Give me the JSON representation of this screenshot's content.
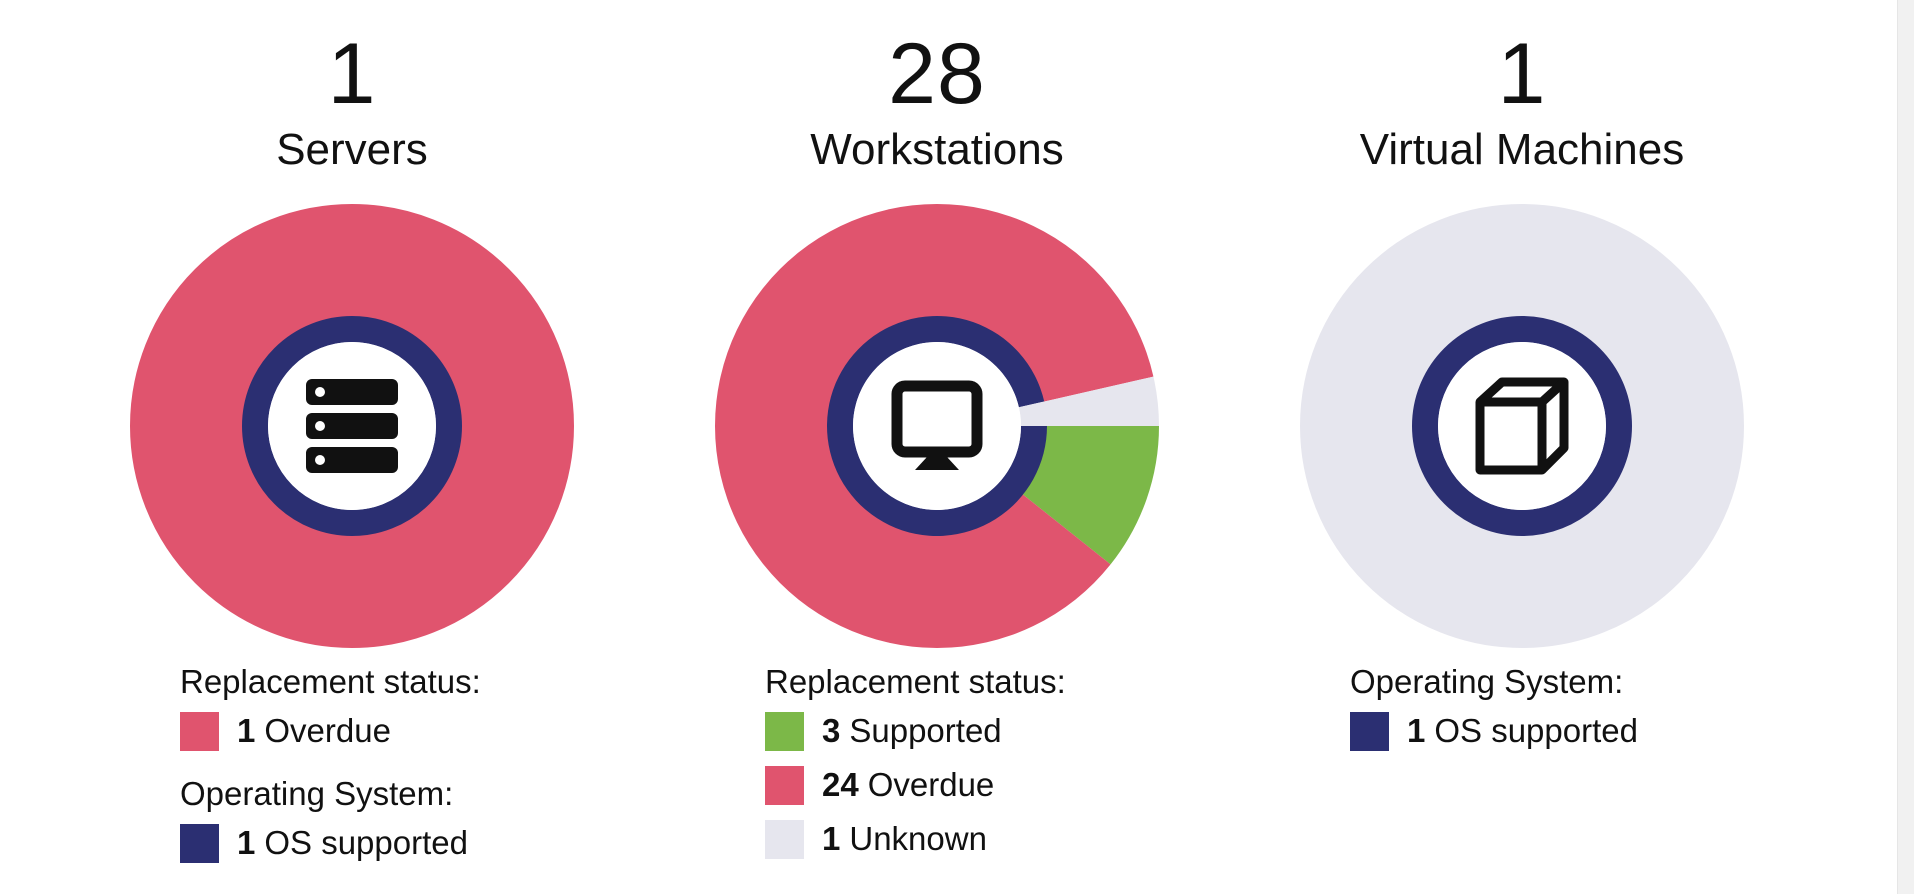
{
  "colors": {
    "overdue": "#e0546e",
    "supported": "#7cb848",
    "unknown": "#e6e6ee",
    "os_supported": "#2b2f72",
    "empty_ring": "#e6e6ee",
    "center": "#ffffff"
  },
  "chart_data": [
    {
      "type": "pie",
      "count": "1",
      "name": "Servers",
      "icon": "server-icon",
      "outer_series": [
        {
          "name": "Overdue",
          "value": 1,
          "color": "#e0546e"
        }
      ],
      "inner_series": [
        {
          "name": "OS supported",
          "value": 1,
          "color": "#2b2f72"
        }
      ],
      "legend_groups": [
        {
          "heading": "Replacement status:",
          "items": [
            {
              "count": "1",
              "label": "Overdue",
              "color": "#e0546e"
            }
          ]
        },
        {
          "heading": "Operating System:",
          "items": [
            {
              "count": "1",
              "label": "OS supported",
              "color": "#2b2f72"
            }
          ]
        }
      ]
    },
    {
      "type": "pie",
      "count": "28",
      "name": "Workstations",
      "icon": "monitor-icon",
      "outer_series": [
        {
          "name": "Supported",
          "value": 3,
          "color": "#7cb848"
        },
        {
          "name": "Overdue",
          "value": 24,
          "color": "#e0546e"
        },
        {
          "name": "Unknown",
          "value": 1,
          "color": "#e6e6ee"
        }
      ],
      "inner_series": [
        {
          "name": "OS supported",
          "value": 27,
          "color": "#2b2f72"
        },
        {
          "name": "Unknown",
          "value": 1,
          "color": "#e6e6ee"
        }
      ],
      "legend_groups": [
        {
          "heading": "Replacement status:",
          "items": [
            {
              "count": "3",
              "label": "Supported",
              "color": "#7cb848"
            },
            {
              "count": "24",
              "label": "Overdue",
              "color": "#e0546e"
            },
            {
              "count": "1",
              "label": "Unknown",
              "color": "#e6e6ee"
            }
          ]
        }
      ]
    },
    {
      "type": "pie",
      "count": "1",
      "name": "Virtual Machines",
      "icon": "cube-icon",
      "outer_series": [
        {
          "name": "",
          "value": 1,
          "color": "#e6e6ee"
        }
      ],
      "inner_series": [
        {
          "name": "OS supported",
          "value": 1,
          "color": "#2b2f72"
        }
      ],
      "legend_groups": [
        {
          "heading": "Operating System:",
          "items": [
            {
              "count": "1",
              "label": "OS supported",
              "color": "#2b2f72"
            }
          ]
        }
      ]
    }
  ]
}
